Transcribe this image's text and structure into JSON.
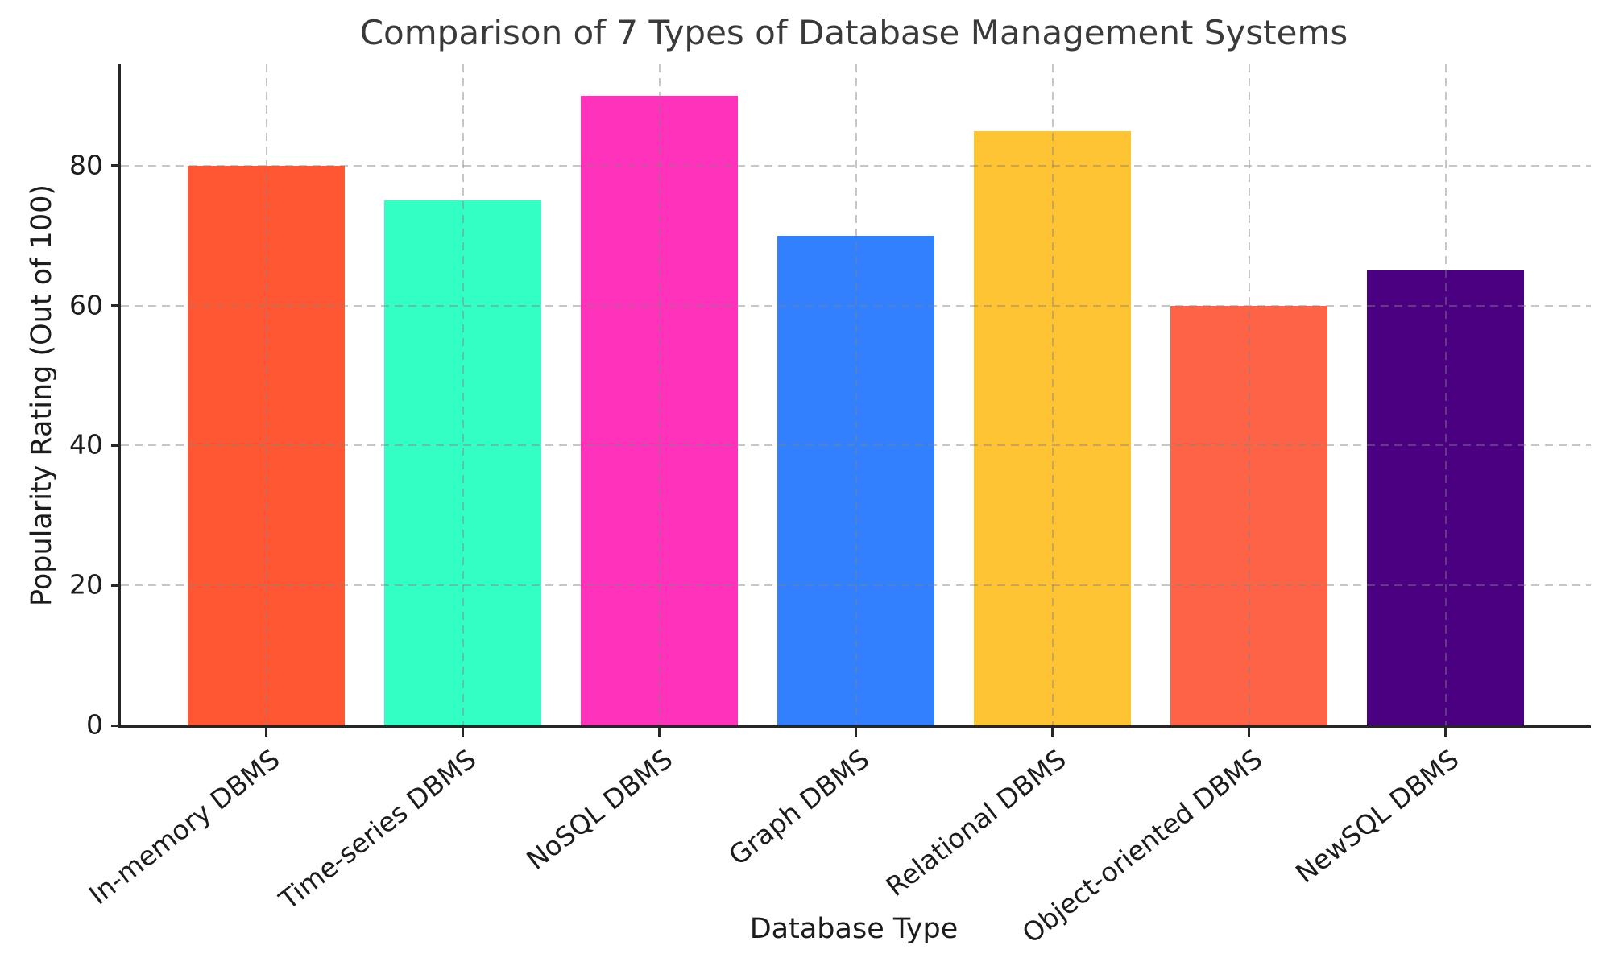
{
  "figure": {
    "background": "#ffffff",
    "title_color": "#3a3a3a",
    "text_color": "#1c1c1c",
    "spine_color": "#262626",
    "grid_color_rgba": "rgba(130,130,130,0.45)"
  },
  "chart_data": {
    "type": "bar",
    "title": "Comparison of 7 Types of Database Management Systems",
    "xlabel": "Database Type",
    "ylabel": "Popularity Rating (Out of 100)",
    "categories": [
      "In-memory DBMS",
      "Time-series DBMS",
      "NoSQL DBMS",
      "Graph DBMS",
      "Relational DBMS",
      "Object-oriented DBMS",
      "NewSQL DBMS"
    ],
    "values": [
      80,
      75,
      90,
      70,
      85,
      60,
      65
    ],
    "bar_colors": [
      "#FF5733",
      "#33FFC4",
      "#FF33BB",
      "#3380FF",
      "#FFC433",
      "#FF6347",
      "#4B0082"
    ],
    "yticks": [
      0,
      20,
      40,
      60,
      80
    ],
    "ylim": [
      0,
      94.5
    ],
    "grid": true,
    "grid_linestyle": "dashed",
    "x_tick_rotation_deg": 38,
    "legend": "none"
  }
}
